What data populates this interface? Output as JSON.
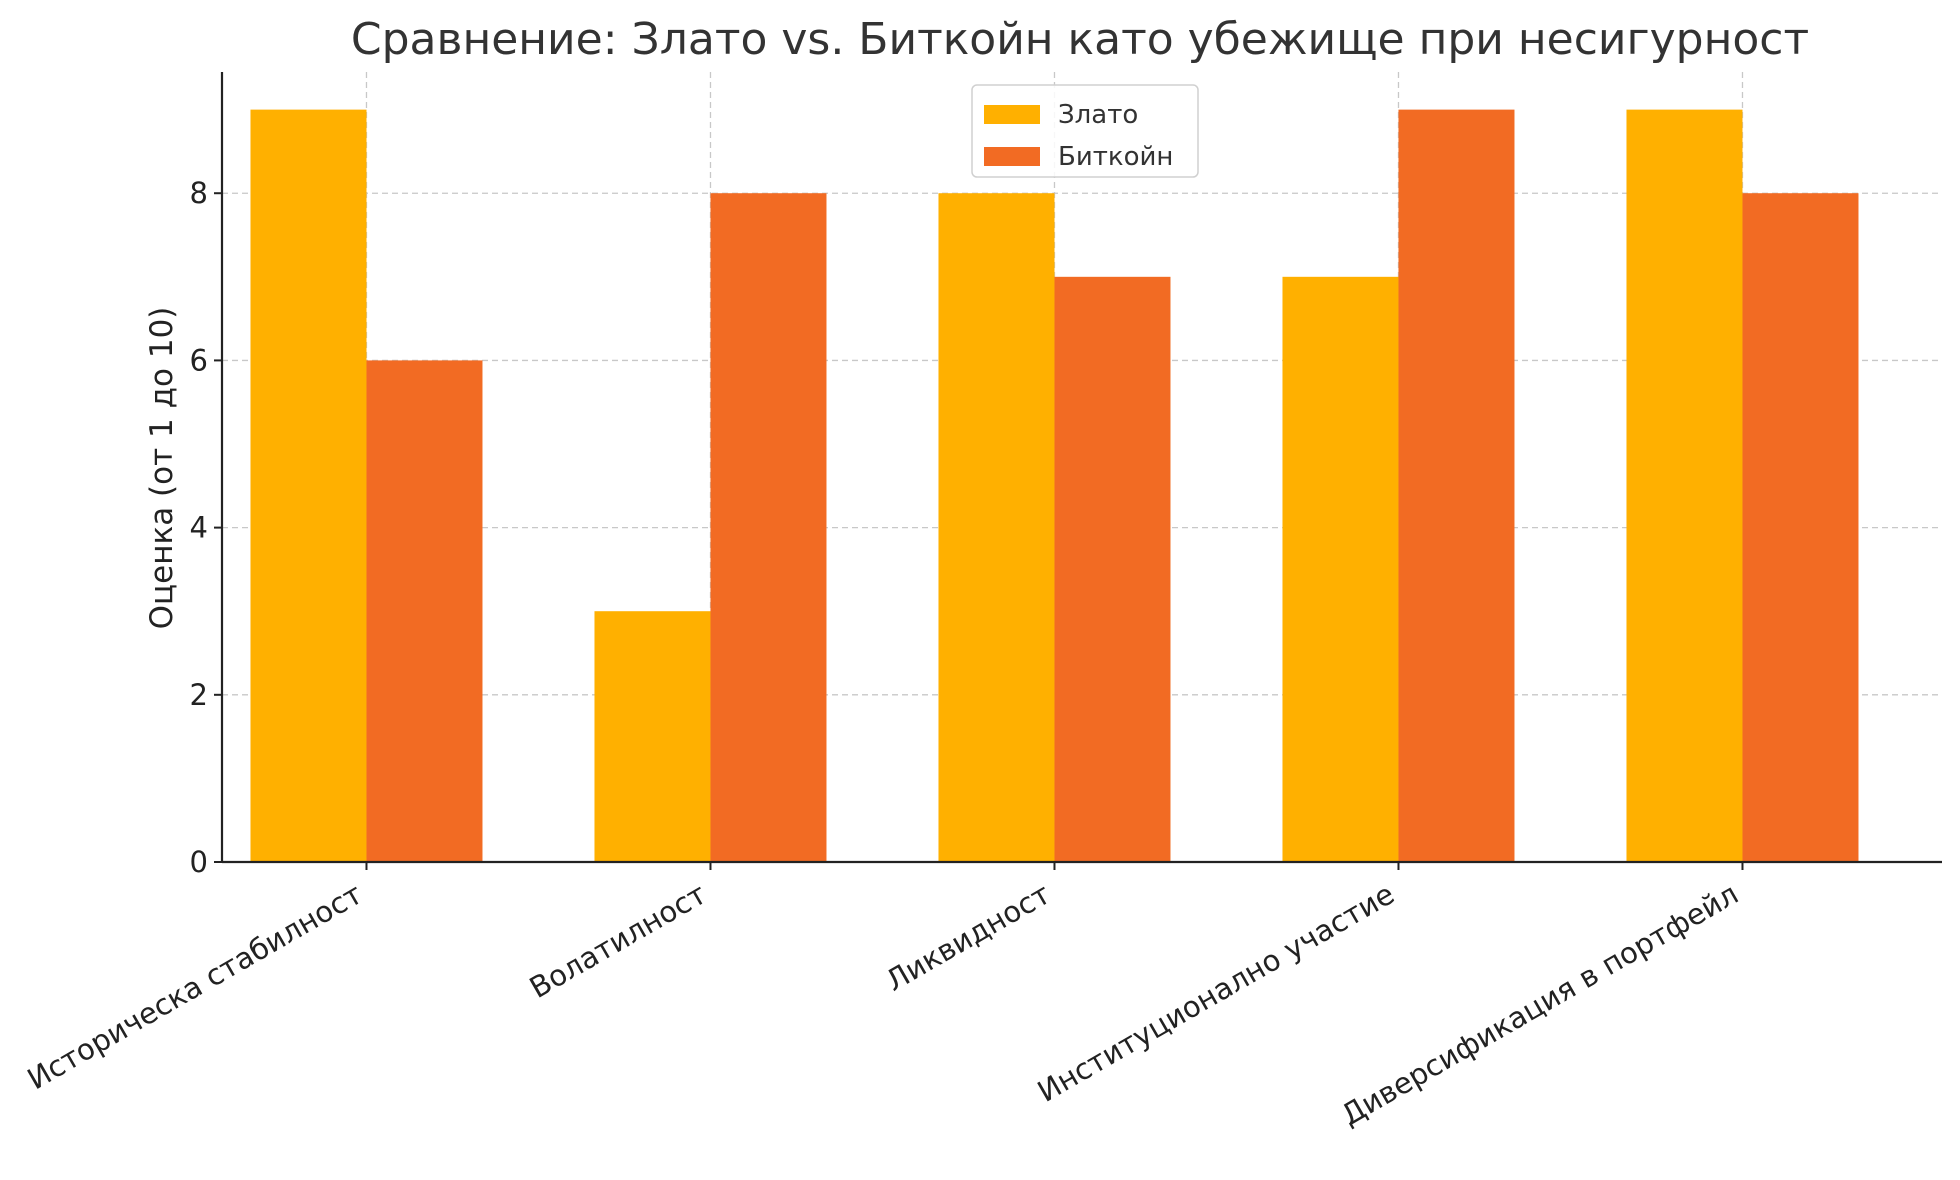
{
  "chart_data": {
    "type": "bar",
    "title": "Сравнение: Злато vs. Биткойн като убежище при несигурност",
    "xlabel": "",
    "ylabel": "Оценка (от 1 до 10)",
    "categories": [
      "Историческа стабилност",
      "Волатилност",
      "Ликвидност",
      "Институционално участие",
      "Диверсификация в портфейл"
    ],
    "series": [
      {
        "name": "Злато",
        "color": "#FFB000",
        "values": [
          9,
          3,
          8,
          7,
          9
        ]
      },
      {
        "name": "Биткойн",
        "color": "#F26B23",
        "values": [
          6,
          8,
          7,
          9,
          8
        ]
      }
    ],
    "ylim": [
      0,
      9.45
    ],
    "yticks": [
      0,
      2,
      4,
      6,
      8
    ],
    "grid": true,
    "legend_position": "top-center"
  }
}
